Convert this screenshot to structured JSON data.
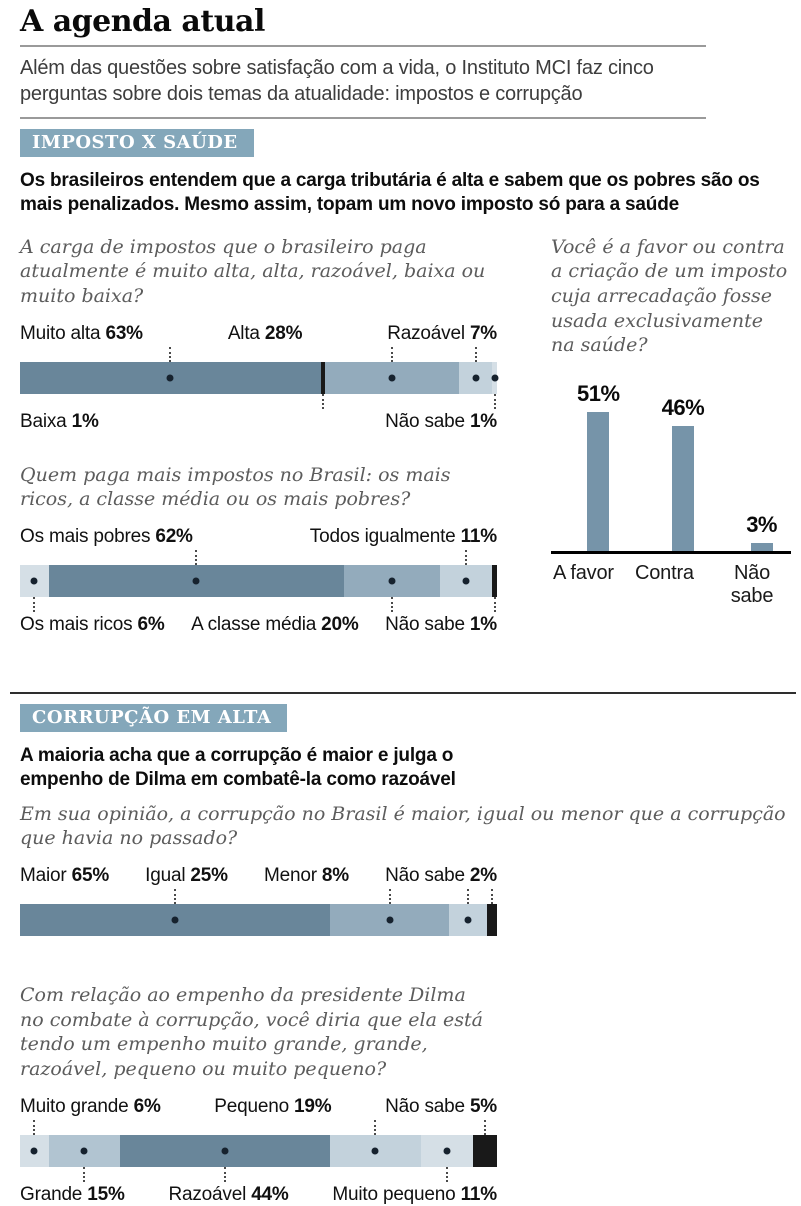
{
  "page": {
    "title": "A agenda atual",
    "intro": "Além das questões sobre satisfação com a vida, o Instituto MCI faz cinco perguntas sobre dois temas da atualidade: impostos e corrupção"
  },
  "colors": {
    "dark": "#69869a",
    "medium": "#93abbc",
    "medium_light": "#b1c4d1",
    "light": "#c3d2dc",
    "very_light": "#d5dfe6",
    "black": "#191919",
    "badge": "#84a7ba",
    "bar_vertical": "#7694a9"
  },
  "sections": {
    "tax": {
      "badge": "IMPOSTO X SAÚDE",
      "headline": "Os brasileiros entendem que a carga tributária é alta e sabem que os pobres são os mais penalizados. Mesmo assim, topam um novo imposto só para a saúde"
    },
    "corruption": {
      "badge": "CORRUPÇÃO EM ALTA",
      "headline": "A maioria acha que a corrupção é maior e julga o empenho de Dilma em combatê-la como razoável"
    }
  },
  "chart_data": [
    {
      "id": "tax_burden",
      "type": "stacked-bar",
      "question": "A carga de impostos que o brasileiro paga atualmente é muito alta, alta, razoável, baixa ou muito baixa?",
      "unit": "%",
      "segments": [
        {
          "label": "Muito alta",
          "value": 63,
          "color": "dark",
          "label_pos": "top"
        },
        {
          "label": "Baixa",
          "value": 1,
          "color": "black",
          "label_pos": "bottom"
        },
        {
          "label": "Alta",
          "value": 28,
          "color": "medium",
          "label_pos": "top"
        },
        {
          "label": "Razoável",
          "value": 7,
          "color": "light",
          "label_pos": "top"
        },
        {
          "label": "Não sabe",
          "value": 1,
          "color": "very_light",
          "label_pos": "bottom"
        }
      ]
    },
    {
      "id": "who_pays",
      "type": "stacked-bar",
      "question": "Quem paga mais impostos no Brasil: os mais ricos, a classe média ou os mais pobres?",
      "unit": "%",
      "segments": [
        {
          "label": "Os mais ricos",
          "value": 6,
          "color": "very_light",
          "label_pos": "bottom"
        },
        {
          "label": "Os mais pobres",
          "value": 62,
          "color": "dark",
          "label_pos": "top"
        },
        {
          "label": "A classe média",
          "value": 20,
          "color": "medium",
          "label_pos": "bottom"
        },
        {
          "label": "Todos igualmente",
          "value": 11,
          "color": "light",
          "label_pos": "top"
        },
        {
          "label": "Não sabe",
          "value": 1,
          "color": "black",
          "label_pos": "bottom"
        }
      ]
    },
    {
      "id": "health_tax",
      "type": "bar",
      "question": "Você é a favor ou contra a criação de um imposto cuja arrecadação fosse usada exclusivamente na saúde?",
      "categories": [
        "A favor",
        "Contra",
        "Não sabe"
      ],
      "values": [
        51,
        46,
        3
      ],
      "unit": "%",
      "ylim": [
        0,
        55
      ],
      "grid": false,
      "legend": "none"
    },
    {
      "id": "corruption_level",
      "type": "stacked-bar",
      "question": "Em sua opinião, a corrupção no Brasil é maior, igual ou menor que a corrupção que havia no passado?",
      "unit": "%",
      "segments": [
        {
          "label": "Maior",
          "value": 65,
          "color": "dark",
          "label_pos": "top"
        },
        {
          "label": "Igual",
          "value": 25,
          "color": "medium",
          "label_pos": "top"
        },
        {
          "label": "Menor",
          "value": 8,
          "color": "light",
          "label_pos": "top"
        },
        {
          "label": "Não sabe",
          "value": 2,
          "color": "black",
          "label_pos": "top"
        }
      ]
    },
    {
      "id": "dilma_effort",
      "type": "stacked-bar",
      "question": "Com relação ao empenho da presidente Dilma no combate à corrupção, você diria que ela está tendo um empenho muito grande, grande, razoável, pequeno ou muito pequeno?",
      "unit": "%",
      "segments": [
        {
          "label": "Muito grande",
          "value": 6,
          "color": "very_light",
          "label_pos": "top"
        },
        {
          "label": "Grande",
          "value": 15,
          "color": "medium_light",
          "label_pos": "bottom"
        },
        {
          "label": "Razoável",
          "value": 44,
          "color": "dark",
          "label_pos": "bottom"
        },
        {
          "label": "Pequeno",
          "value": 19,
          "color": "light",
          "label_pos": "top"
        },
        {
          "label": "Muito pequeno",
          "value": 11,
          "color": "very_light",
          "label_pos": "bottom"
        },
        {
          "label": "Não sabe",
          "value": 5,
          "color": "black",
          "label_pos": "top"
        }
      ]
    }
  ]
}
